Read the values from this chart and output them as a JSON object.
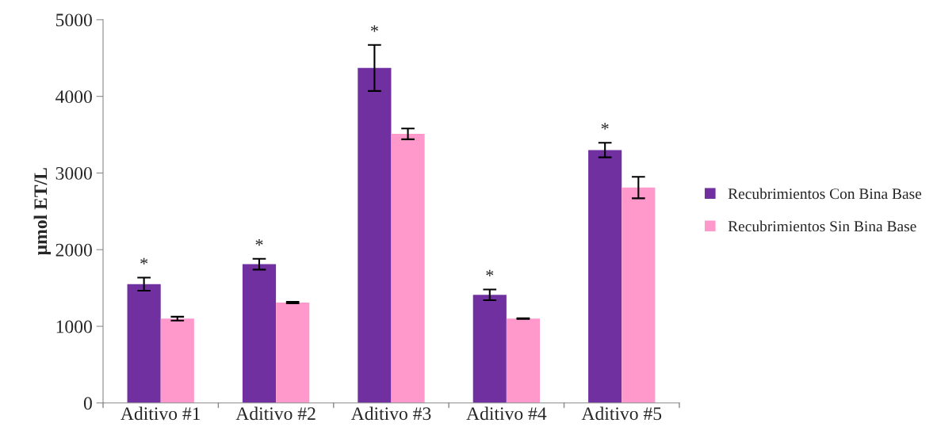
{
  "chart_data": {
    "type": "bar",
    "ylabel": "µmol ET/L",
    "categories": [
      "Aditivo #1",
      "Aditivo #2",
      "Aditivo #3",
      "Aditivo #4",
      "Aditivo #5"
    ],
    "series": [
      {
        "name": "Recubrimientos Con Bina Base",
        "color": "#7030a0",
        "values": [
          1550,
          1810,
          4370,
          1410,
          3300
        ],
        "errors": [
          85,
          70,
          300,
          70,
          95
        ]
      },
      {
        "name": "Recubrimientos Sin Bina Base",
        "color": "#ff99cc",
        "values": [
          1100,
          1310,
          3510,
          1100,
          2810
        ],
        "errors": [
          25,
          10,
          70,
          5,
          140
        ]
      }
    ],
    "annotations": [
      "*",
      "*",
      "*",
      "*",
      "*"
    ],
    "ylim": [
      0,
      5000
    ],
    "yticks": [
      0,
      1000,
      2000,
      3000,
      4000,
      5000
    ],
    "grid": false,
    "legend": "right"
  }
}
